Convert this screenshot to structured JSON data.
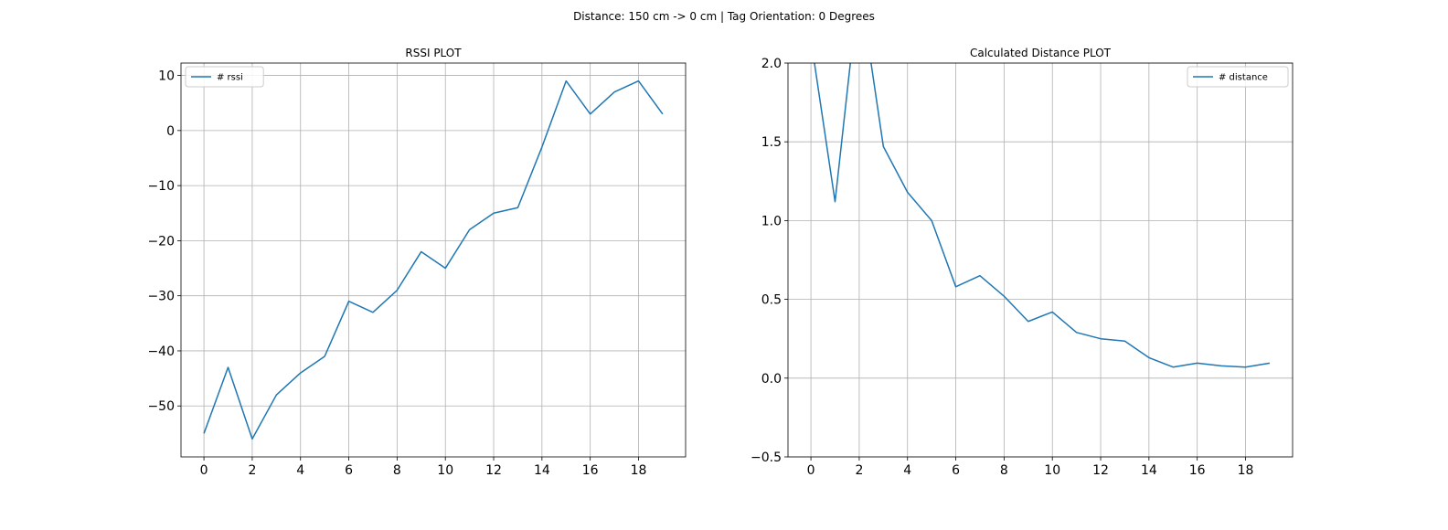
{
  "figure": {
    "suptitle": "Distance: 150 cm -> 0 cm | Tag Orientation: 0 Degrees"
  },
  "chart_data": [
    {
      "type": "line",
      "title": "RSSI PLOT",
      "xlabel": "",
      "ylabel": "",
      "x": [
        0,
        1,
        2,
        3,
        4,
        5,
        6,
        7,
        8,
        9,
        10,
        11,
        12,
        13,
        14,
        15,
        16,
        17,
        18,
        19
      ],
      "series": [
        {
          "name": "# rssi",
          "color": "#1f77b4",
          "values": [
            -55,
            -43,
            -56,
            -48,
            -44,
            -41,
            -31,
            -33,
            -29,
            -22,
            -25,
            -18,
            -15,
            -14,
            -3,
            9,
            3,
            7,
            9,
            3
          ]
        }
      ],
      "xlim": [
        -0.95,
        19.95
      ],
      "ylim": [
        -59.25,
        12.25
      ],
      "xticks": [
        0,
        2,
        4,
        6,
        8,
        10,
        12,
        14,
        16,
        18
      ],
      "yticks": [
        -50,
        -40,
        -30,
        -20,
        -10,
        0,
        10
      ],
      "grid": true,
      "legend": "upper-left"
    },
    {
      "type": "line",
      "title": "Calculated Distance PLOT",
      "xlabel": "",
      "ylabel": "",
      "x": [
        0,
        1,
        2,
        3,
        4,
        5,
        6,
        7,
        8,
        9,
        10,
        11,
        12,
        13,
        14,
        15,
        16,
        17,
        18,
        19
      ],
      "series": [
        {
          "name": "# distance",
          "color": "#1f77b4",
          "values": [
            2.15,
            1.12,
            2.51,
            1.47,
            1.18,
            1.0,
            0.58,
            0.65,
            0.52,
            0.36,
            0.42,
            0.29,
            0.25,
            0.235,
            0.13,
            0.07,
            0.095,
            0.078,
            0.07,
            0.095
          ]
        }
      ],
      "xlim": [
        -0.95,
        19.95
      ],
      "ylim": [
        -0.5,
        2.0
      ],
      "xticks": [
        0,
        2,
        4,
        6,
        8,
        10,
        12,
        14,
        16,
        18
      ],
      "yticks": [
        -0.5,
        0.0,
        0.5,
        1.0,
        1.5,
        2.0
      ],
      "ytick_labels": [
        "−0.5",
        "0.0",
        "0.5",
        "1.0",
        "1.5",
        "2.0"
      ],
      "grid": true,
      "legend": "upper-right"
    }
  ]
}
